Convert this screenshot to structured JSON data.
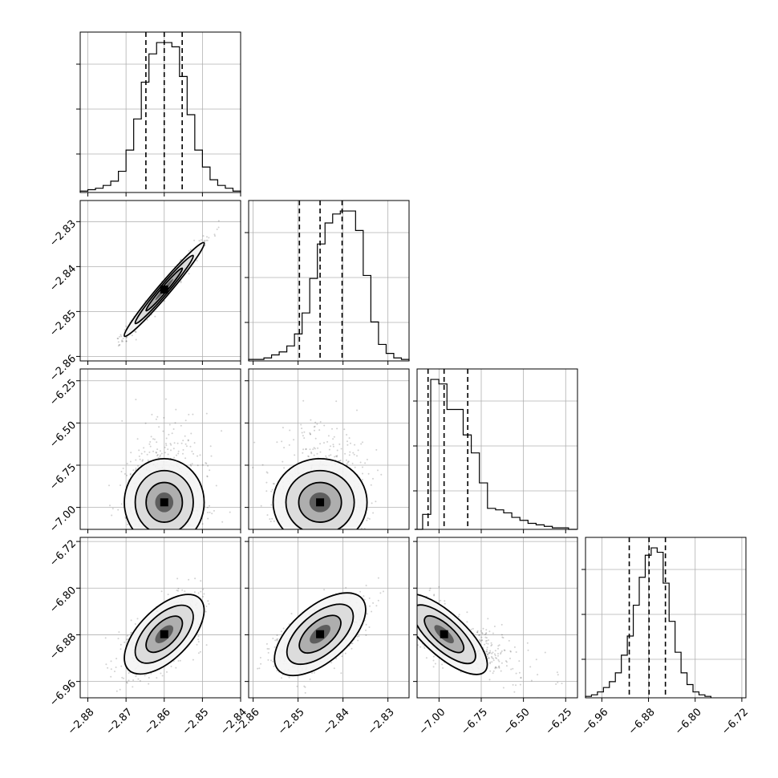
{
  "chart_data": {
    "type": "corner",
    "grid": true,
    "quantile_lines": "dashed",
    "parameters": [
      {
        "range": [
          -2.882,
          -2.84
        ],
        "ticks": [
          -2.88,
          -2.87,
          -2.86,
          -2.85,
          -2.84
        ],
        "tick_labels": [
          "−2.88",
          "−2.87",
          "−2.86",
          "−2.85",
          "−2.84"
        ],
        "quantiles": [
          -2.8648,
          -2.86,
          -2.8553
        ],
        "hist_edges": [
          -2.882,
          -2.84
        ],
        "hist_counts": [
          1,
          2,
          3,
          5,
          8,
          15,
          30,
          52,
          78,
          98,
          106,
          106,
          103,
          82,
          55,
          30,
          18,
          9,
          5,
          3,
          1
        ]
      },
      {
        "range": [
          -2.861,
          -2.8253
        ],
        "ticks": [
          -2.86,
          -2.85,
          -2.84,
          -2.83
        ],
        "tick_labels": [
          "−2.86",
          "−2.85",
          "−2.84",
          "−2.83"
        ],
        "quantiles": [
          -2.8497,
          -2.8451,
          -2.8402
        ],
        "hist_edges": [
          -2.861,
          -2.8253
        ],
        "hist_counts": [
          1,
          1,
          2,
          4,
          6,
          10,
          18,
          32,
          55,
          78,
          92,
          98,
          100,
          100,
          87,
          57,
          26,
          11,
          5,
          2,
          1
        ]
      },
      {
        "range": [
          -7.13,
          -6.18
        ],
        "ticks": [
          -7.0,
          -6.75,
          -6.5,
          -6.25
        ],
        "tick_labels": [
          "−7.00",
          "−6.75",
          "−6.50",
          "−6.25"
        ],
        "quantiles": [
          -7.065,
          -6.97,
          -6.83
        ],
        "hist_edges": [
          -7.145,
          -6.185
        ],
        "hist_counts": [
          0,
          10,
          100,
          97,
          80,
          80,
          63,
          51,
          31,
          14,
          13,
          11,
          8,
          6,
          4,
          3,
          2,
          1,
          1,
          0
        ]
      },
      {
        "range": [
          -6.988,
          -6.713
        ],
        "ticks": [
          -6.96,
          -6.88,
          -6.8,
          -6.72
        ],
        "tick_labels": [
          "−6.96",
          "−6.88",
          "−6.80",
          "−6.72"
        ],
        "quantiles": [
          -6.913,
          -6.879,
          -6.851
        ],
        "hist_edges": [
          -6.988,
          -6.773
        ],
        "hist_counts": [
          1,
          2,
          4,
          7,
          11,
          17,
          29,
          42,
          63,
          82,
          97,
          102,
          99,
          78,
          52,
          31,
          17,
          9,
          4,
          2,
          1
        ]
      }
    ],
    "pairs": [
      {
        "x": 0,
        "y": 1,
        "rho": 0.98,
        "levels": 4
      },
      {
        "x": 0,
        "y": 2,
        "rho": 0.0,
        "levels": 4
      },
      {
        "x": 1,
        "y": 2,
        "rho": 0.0,
        "levels": 4
      },
      {
        "x": 0,
        "y": 3,
        "rho": 0.6,
        "levels": 4
      },
      {
        "x": 1,
        "y": 3,
        "rho": 0.6,
        "levels": 4
      },
      {
        "x": 2,
        "y": 3,
        "rho": -0.75,
        "levels": 4
      }
    ]
  }
}
